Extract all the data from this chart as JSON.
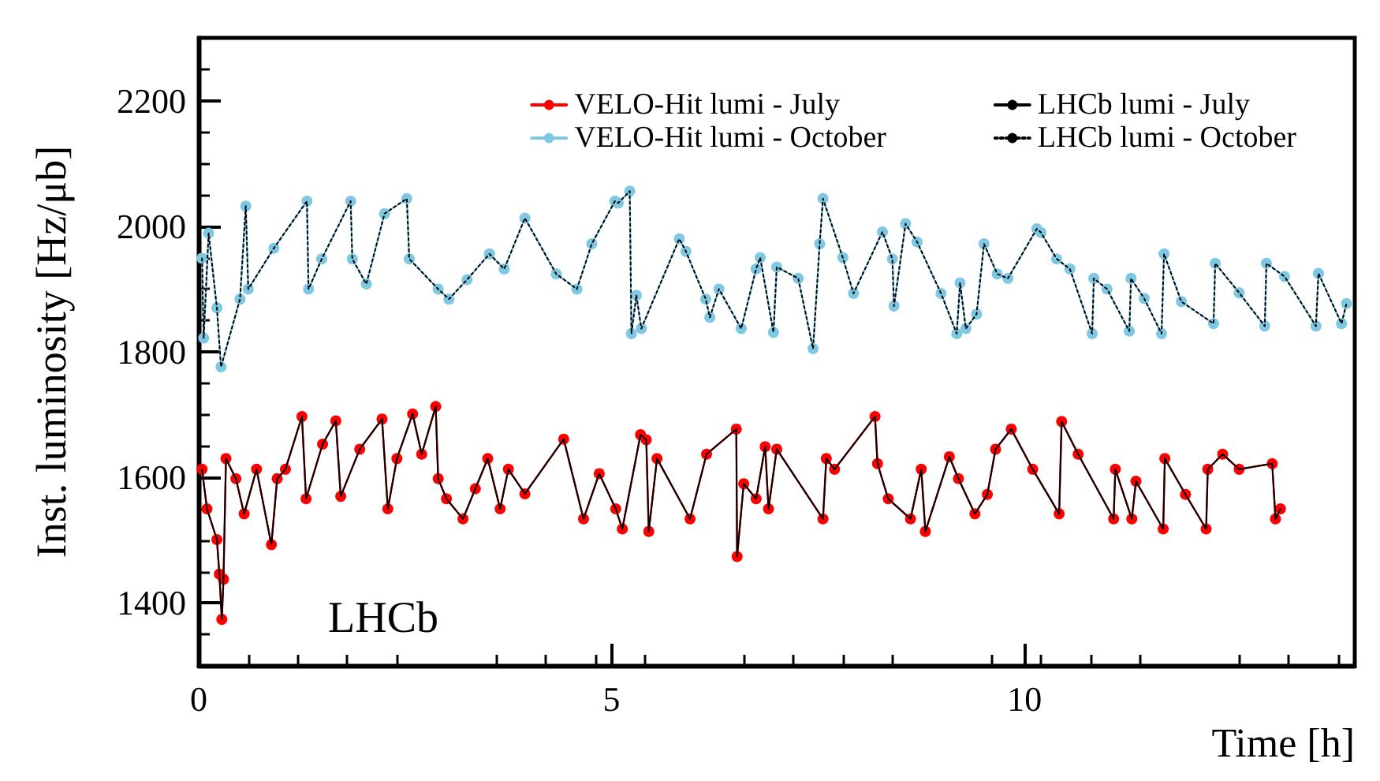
{
  "chart_data": {
    "type": "line",
    "xlabel": "Time [h]",
    "ylabel": "Inst. luminosity [Hz/μb]",
    "xlim": [
      0,
      14
    ],
    "xticks": [
      0,
      5,
      10
    ],
    "ylim": [
      1300,
      2300
    ],
    "yticks": [
      1400,
      1600,
      1800,
      2000,
      2200
    ],
    "legend": "top right",
    "grid": false,
    "annotations": [
      "LHCb"
    ],
    "series": [
      {
        "name": "VELO-Hit lumi - July",
        "color": "#ff0000",
        "marker": "circle",
        "line_style": "solid",
        "x": [
          0.04,
          0.1,
          0.22,
          0.25,
          0.28,
          0.3,
          0.33,
          0.45,
          0.55,
          0.7,
          0.88,
          0.95,
          1.05,
          1.25,
          1.3,
          1.5,
          1.66,
          1.72,
          1.95,
          2.22,
          2.29,
          2.4,
          2.59,
          2.7,
          2.87,
          2.9,
          3.0,
          3.2,
          3.35,
          3.5,
          3.65,
          3.75,
          3.95,
          4.42,
          4.66,
          4.85,
          5.05,
          5.13,
          5.35,
          5.42,
          5.45,
          5.55,
          5.95,
          6.15,
          6.51,
          6.52,
          6.6,
          6.75,
          6.86,
          6.9,
          7.0,
          7.56,
          7.6,
          7.7,
          8.19,
          8.22,
          8.35,
          8.62,
          8.75,
          8.8,
          9.09,
          9.2,
          9.4,
          9.55,
          9.65,
          9.84,
          10.1,
          10.42,
          10.45,
          10.65,
          11.08,
          11.1,
          11.3,
          11.35,
          11.68,
          11.7,
          11.95,
          12.2,
          12.22,
          12.4,
          12.6,
          13.0,
          13.04,
          13.1
        ],
        "values": [
          1613,
          1550,
          1501,
          1446,
          1374,
          1438,
          1630,
          1598,
          1542,
          1613,
          1493,
          1598,
          1613,
          1697,
          1566,
          1653,
          1690,
          1570,
          1645,
          1693,
          1550,
          1630,
          1701,
          1637,
          1713,
          1598,
          1566,
          1534,
          1582,
          1630,
          1550,
          1613,
          1574,
          1661,
          1534,
          1606,
          1550,
          1518,
          1668,
          1660,
          1514,
          1630,
          1534,
          1637,
          1677,
          1474,
          1590,
          1566,
          1649,
          1550,
          1645,
          1534,
          1630,
          1613,
          1697,
          1622,
          1566,
          1534,
          1613,
          1514,
          1633,
          1598,
          1542,
          1573,
          1645,
          1677,
          1613,
          1542,
          1689,
          1637,
          1534,
          1613,
          1534,
          1594,
          1518,
          1630,
          1573,
          1518,
          1613,
          1637,
          1613,
          1622,
          1534,
          1550
        ]
      },
      {
        "name": "VELO-Hit lumi - October",
        "color": "#7ec8e3",
        "marker": "circle",
        "line_style": "solid",
        "x": [
          0.04,
          0.06,
          0.12,
          0.22,
          0.27,
          0.5,
          0.57,
          0.6,
          0.91,
          1.31,
          1.33,
          1.49,
          1.84,
          1.86,
          2.03,
          2.25,
          2.52,
          2.55,
          2.9,
          3.03,
          3.25,
          3.52,
          3.7,
          3.95,
          4.33,
          4.58,
          4.76,
          5.04,
          5.08,
          5.22,
          5.24,
          5.3,
          5.36,
          5.82,
          5.9,
          6.14,
          6.19,
          6.3,
          6.57,
          6.75,
          6.8,
          6.96,
          7.0,
          7.26,
          7.44,
          7.52,
          7.56,
          7.8,
          7.93,
          8.28,
          8.4,
          8.42,
          8.56,
          8.7,
          8.99,
          9.18,
          9.22,
          9.29,
          9.42,
          9.51,
          9.67,
          9.8,
          10.15,
          10.2,
          10.39,
          10.55,
          10.82,
          10.84,
          11.0,
          11.27,
          11.29,
          11.45,
          11.66,
          11.69,
          11.9,
          12.29,
          12.31,
          12.6,
          12.91,
          12.93,
          13.15,
          13.53,
          13.56,
          13.84,
          13.9
        ],
        "values": [
          1949,
          1822,
          1989,
          1870,
          1776,
          1884,
          2032,
          1900,
          1965,
          2040,
          1900,
          1948,
          2040,
          1948,
          1908,
          2020,
          2044,
          1948,
          1900,
          1884,
          1915,
          1956,
          1932,
          2013,
          1924,
          1900,
          1972,
          2040,
          2037,
          2056,
          1829,
          1890,
          1837,
          1980,
          1960,
          1884,
          1855,
          1900,
          1837,
          1932,
          1950,
          1831,
          1935,
          1917,
          1805,
          1972,
          2044,
          1950,
          1893,
          1991,
          1948,
          1873,
          2004,
          1975,
          1893,
          1829,
          1910,
          1837,
          1860,
          1972,
          1924,
          1917,
          1996,
          1990,
          1948,
          1932,
          1829,
          1917,
          1900,
          1833,
          1917,
          1885,
          1829,
          1956,
          1880,
          1845,
          1941,
          1894,
          1841,
          1941,
          1920,
          1841,
          1925,
          1845,
          1877
        ]
      },
      {
        "name": "LHCb lumi - July",
        "color": "#000000",
        "marker": "none",
        "line_style": "solid",
        "x": [
          0.04,
          0.1,
          0.22,
          0.25,
          0.28,
          0.3,
          0.33,
          0.45,
          0.55,
          0.7,
          0.88,
          0.95,
          1.05,
          1.25,
          1.3,
          1.5,
          1.66,
          1.72,
          1.95,
          2.22,
          2.29,
          2.4,
          2.59,
          2.7,
          2.87,
          2.9,
          3.0,
          3.2,
          3.35,
          3.5,
          3.65,
          3.75,
          3.95,
          4.42,
          4.66,
          4.85,
          5.05,
          5.13,
          5.35,
          5.42,
          5.45,
          5.55,
          5.95,
          6.15,
          6.51,
          6.52,
          6.6,
          6.75,
          6.86,
          6.9,
          7.0,
          7.56,
          7.6,
          7.7,
          8.19,
          8.22,
          8.35,
          8.62,
          8.75,
          8.8,
          9.09,
          9.2,
          9.4,
          9.55,
          9.65,
          9.84,
          10.1,
          10.42,
          10.45,
          10.65,
          11.08,
          11.1,
          11.3,
          11.35,
          11.68,
          11.7,
          11.95,
          12.2,
          12.22,
          12.4,
          12.6,
          13.0,
          13.04,
          13.1
        ],
        "values": [
          1613,
          1550,
          1501,
          1446,
          1374,
          1438,
          1630,
          1598,
          1542,
          1613,
          1493,
          1598,
          1613,
          1697,
          1566,
          1653,
          1690,
          1570,
          1645,
          1693,
          1550,
          1630,
          1701,
          1637,
          1713,
          1598,
          1566,
          1534,
          1582,
          1630,
          1550,
          1613,
          1574,
          1661,
          1534,
          1606,
          1550,
          1518,
          1668,
          1660,
          1514,
          1630,
          1534,
          1637,
          1677,
          1474,
          1590,
          1566,
          1649,
          1550,
          1645,
          1534,
          1630,
          1613,
          1697,
          1622,
          1566,
          1534,
          1613,
          1514,
          1633,
          1598,
          1542,
          1573,
          1645,
          1677,
          1613,
          1542,
          1689,
          1637,
          1534,
          1613,
          1534,
          1594,
          1518,
          1630,
          1573,
          1518,
          1613,
          1637,
          1613,
          1622,
          1534,
          1550
        ]
      },
      {
        "name": "LHCb lumi - October",
        "color": "#000000",
        "marker": "none",
        "line_style": "dotted",
        "x": [
          0.04,
          0.06,
          0.12,
          0.22,
          0.27,
          0.5,
          0.57,
          0.6,
          0.91,
          1.31,
          1.33,
          1.49,
          1.84,
          1.86,
          2.03,
          2.25,
          2.52,
          2.55,
          2.9,
          3.03,
          3.25,
          3.52,
          3.7,
          3.95,
          4.33,
          4.58,
          4.76,
          5.04,
          5.08,
          5.22,
          5.24,
          5.3,
          5.36,
          5.82,
          5.9,
          6.14,
          6.19,
          6.3,
          6.57,
          6.75,
          6.8,
          6.96,
          7.0,
          7.26,
          7.44,
          7.52,
          7.56,
          7.8,
          7.93,
          8.28,
          8.4,
          8.42,
          8.56,
          8.7,
          8.99,
          9.18,
          9.22,
          9.29,
          9.42,
          9.51,
          9.67,
          9.8,
          10.15,
          10.2,
          10.39,
          10.55,
          10.82,
          10.84,
          11.0,
          11.27,
          11.29,
          11.45,
          11.66,
          11.69,
          11.9,
          12.29,
          12.31,
          12.6,
          12.91,
          12.93,
          13.15,
          13.53,
          13.56,
          13.84,
          13.9
        ],
        "values": [
          1949,
          1822,
          1989,
          1870,
          1776,
          1884,
          2032,
          1900,
          1965,
          2040,
          1900,
          1948,
          2040,
          1948,
          1908,
          2020,
          2044,
          1948,
          1900,
          1884,
          1915,
          1956,
          1932,
          2013,
          1924,
          1900,
          1972,
          2040,
          2037,
          2056,
          1829,
          1890,
          1837,
          1980,
          1960,
          1884,
          1855,
          1900,
          1837,
          1932,
          1950,
          1831,
          1935,
          1917,
          1805,
          1972,
          2044,
          1950,
          1893,
          1991,
          1948,
          1873,
          2004,
          1975,
          1893,
          1829,
          1910,
          1837,
          1860,
          1972,
          1924,
          1917,
          1996,
          1990,
          1948,
          1932,
          1829,
          1917,
          1900,
          1833,
          1917,
          1885,
          1829,
          1956,
          1880,
          1845,
          1941,
          1894,
          1841,
          1941,
          1920,
          1841,
          1925,
          1845,
          1877
        ]
      }
    ]
  }
}
